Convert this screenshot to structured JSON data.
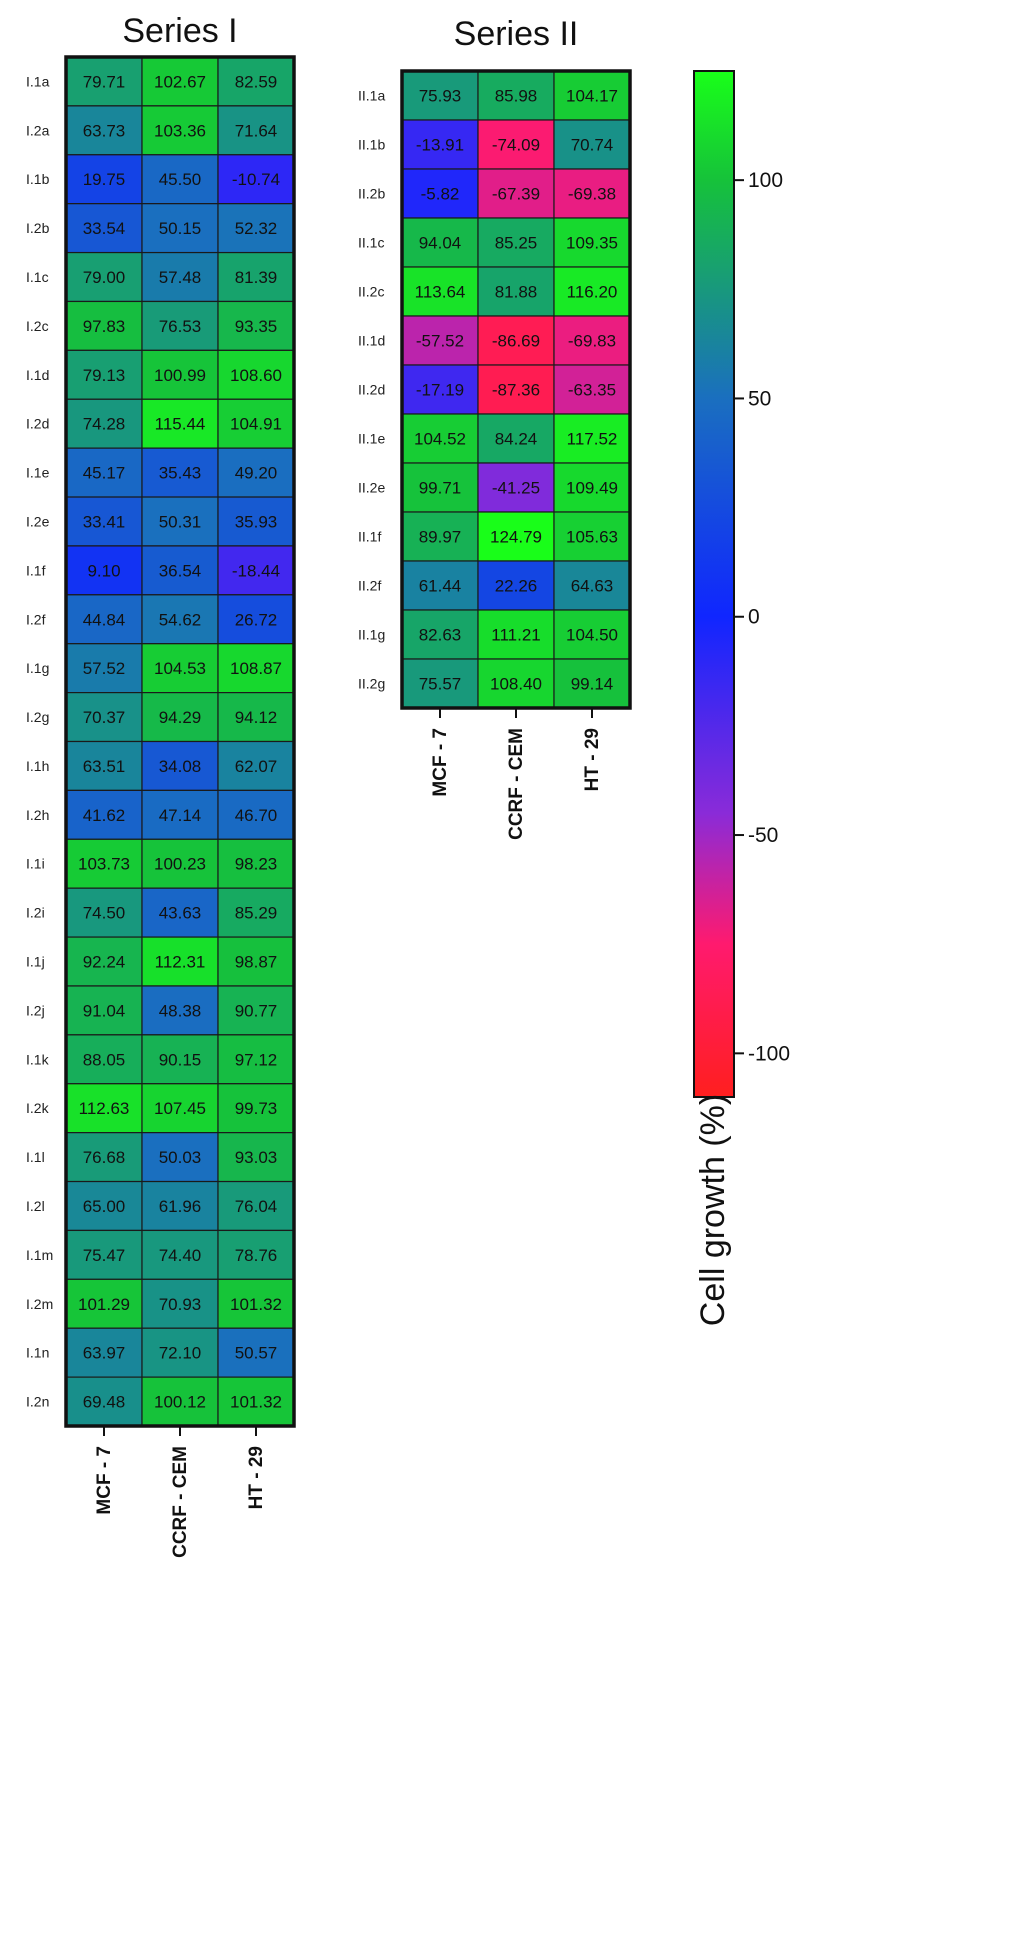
{
  "chart_data": [
    {
      "type": "heatmap",
      "title": "Series I",
      "columns": [
        "MCF - 7",
        "CCRF - CEM",
        "HT - 29"
      ],
      "rows": [
        "I.1a",
        "I.2a",
        "I.1b",
        "I.2b",
        "I.1c",
        "I.2c",
        "I.1d",
        "I.2d",
        "I.1e",
        "I.2e",
        "I.1f",
        "I.2f",
        "I.1g",
        "I.2g",
        "I.1h",
        "I.2h",
        "I.1i",
        "I.2i",
        "I.1j",
        "I.2j",
        "I.1k",
        "I.2k",
        "I.1l",
        "I.2l",
        "I.1m",
        "I.2m",
        "I.1n",
        "I.2n"
      ],
      "values": [
        [
          "79.71",
          "102.67",
          "82.59"
        ],
        [
          "63.73",
          "103.36",
          "71.64"
        ],
        [
          "19.75",
          "45.50",
          "-10.74"
        ],
        [
          "33.54",
          "50.15",
          "52.32"
        ],
        [
          "79.00",
          "57.48",
          "81.39"
        ],
        [
          "97.83",
          "76.53",
          "93.35"
        ],
        [
          "79.13",
          "100.99",
          "108.60"
        ],
        [
          "74.28",
          "115.44",
          "104.91"
        ],
        [
          "45.17",
          "35.43",
          "49.20"
        ],
        [
          "33.41",
          "50.31",
          "35.93"
        ],
        [
          "9.10",
          "36.54",
          "-18.44"
        ],
        [
          "44.84",
          "54.62",
          "26.72"
        ],
        [
          "57.52",
          "104.53",
          "108.87"
        ],
        [
          "70.37",
          "94.29",
          "94.12"
        ],
        [
          "63.51",
          "34.08",
          "62.07"
        ],
        [
          "41.62",
          "47.14",
          "46.70"
        ],
        [
          "103.73",
          "100.23",
          "98.23"
        ],
        [
          "74.50",
          "43.63",
          "85.29"
        ],
        [
          "92.24",
          "112.31",
          "98.87"
        ],
        [
          "91.04",
          "48.38",
          "90.77"
        ],
        [
          "88.05",
          "90.15",
          "97.12"
        ],
        [
          "112.63",
          "107.45",
          "99.73"
        ],
        [
          "76.68",
          "50.03",
          "93.03"
        ],
        [
          "65.00",
          "61.96",
          "76.04"
        ],
        [
          "75.47",
          "74.40",
          "78.76"
        ],
        [
          "101.29",
          "70.93",
          "101.32"
        ],
        [
          "63.97",
          "72.10",
          "50.57"
        ],
        [
          "69.48",
          "100.12",
          "101.32"
        ]
      ]
    },
    {
      "type": "heatmap",
      "title": "Series II",
      "columns": [
        "MCF - 7",
        "CCRF - CEM",
        "HT - 29"
      ],
      "rows": [
        "II.1a",
        "II.1b",
        "II.2b",
        "II.1c",
        "II.2c",
        "II.1d",
        "II.2d",
        "II.1e",
        "II.2e",
        "II.1f",
        "II.2f",
        "II.1g",
        "II.2g"
      ],
      "values": [
        [
          "75.93",
          "85.98",
          "104.17"
        ],
        [
          "-13.91",
          "-74.09",
          "70.74"
        ],
        [
          "-5.82",
          "-67.39",
          "-69.38"
        ],
        [
          "94.04",
          "85.25",
          "109.35"
        ],
        [
          "113.64",
          "81.88",
          "116.20"
        ],
        [
          "-57.52",
          "-86.69",
          "-69.83"
        ],
        [
          "-17.19",
          "-87.36",
          "-63.35"
        ],
        [
          "104.52",
          "84.24",
          "117.52"
        ],
        [
          "99.71",
          "-41.25",
          "109.49"
        ],
        [
          "89.97",
          "124.79",
          "105.63"
        ],
        [
          "61.44",
          "22.26",
          "64.63"
        ],
        [
          "82.63",
          "111.21",
          "104.50"
        ],
        [
          "75.57",
          "108.40",
          "99.14"
        ]
      ]
    }
  ],
  "colorbar": {
    "label": "Cell growth (%)",
    "min": -110,
    "max": 125,
    "ticks": [
      100,
      50,
      0,
      -50,
      -100
    ],
    "tick_labels": [
      "100",
      "50",
      "0",
      "-50",
      "-100"
    ],
    "color_stops": [
      {
        "value": -110,
        "color": "#ff1f1f"
      },
      {
        "value": -75,
        "color": "#ff1a6e"
      },
      {
        "value": -45,
        "color": "#8a2bd8"
      },
      {
        "value": 0,
        "color": "#1026ff"
      },
      {
        "value": 50,
        "color": "#1a6fbf"
      },
      {
        "value": 100,
        "color": "#16c23a"
      },
      {
        "value": 125,
        "color": "#19ff19"
      }
    ]
  }
}
